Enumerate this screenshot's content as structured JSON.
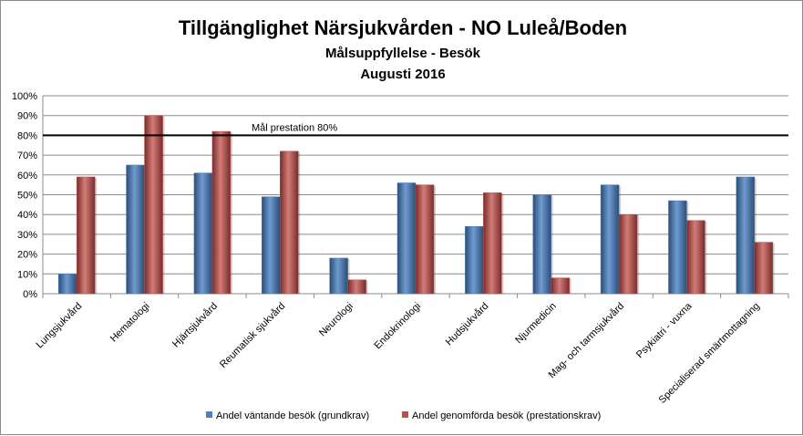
{
  "chart_data": {
    "type": "bar",
    "title": "Tillgänglighet Närsjukvården - NO Luleå/Boden",
    "subtitle": "Målsuppfyllelse - Besök",
    "subtitle2": "Augusti 2016",
    "categories": [
      "Lungsjukvård",
      "Hematologi",
      "Hjärtsjukvård",
      "Reumatisk sjukvård",
      "Neurologi",
      "Endokrinologi",
      "Hudsjukvård",
      "Njurmedicin",
      "Mag- och tarmsjukvård",
      "Psykiatri - vuxna",
      "Specialiserad smärtmottagning"
    ],
    "series": [
      {
        "name": "Andel väntande besök (grundkrav)",
        "color": "#4f81bd",
        "values": [
          10,
          65,
          61,
          49,
          18,
          56,
          34,
          50,
          55,
          47,
          59
        ]
      },
      {
        "name": "Andel genomförda besök (prestationskrav)",
        "color": "#c0504d",
        "values": [
          59,
          90,
          82,
          72,
          7,
          55,
          51,
          8,
          40,
          37,
          26
        ]
      }
    ],
    "yticks": [
      "0%",
      "10%",
      "20%",
      "30%",
      "40%",
      "50%",
      "60%",
      "70%",
      "80%",
      "90%",
      "100%"
    ],
    "ylim": [
      0,
      100
    ],
    "grid": true,
    "legend_position": "bottom",
    "target": {
      "value": 80,
      "label": "Mål prestation  80%"
    }
  }
}
